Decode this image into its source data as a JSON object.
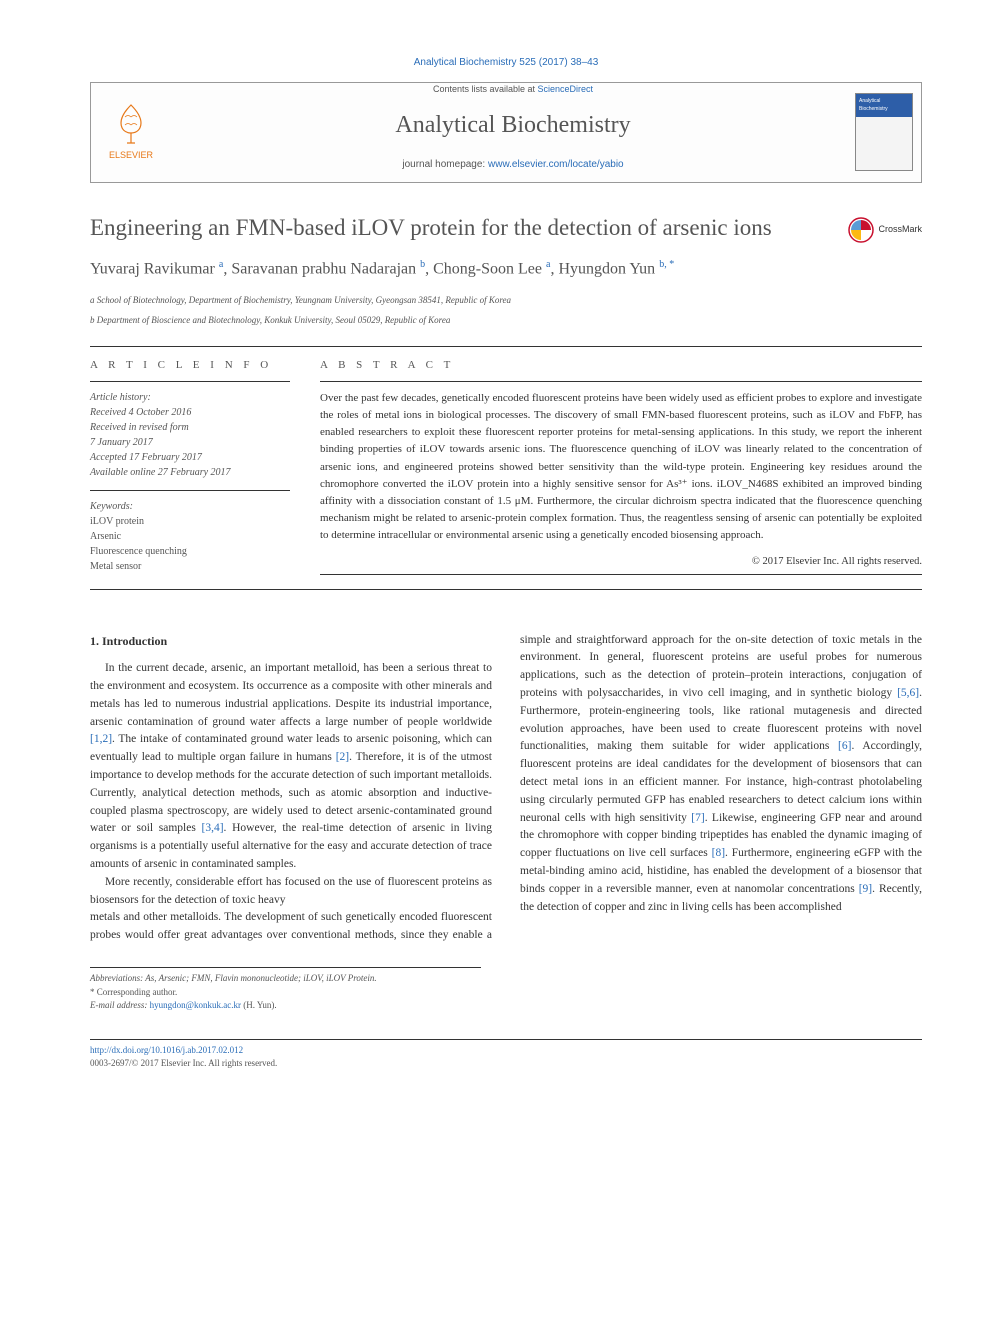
{
  "citation": "Analytical Biochemistry 525 (2017) 38–43",
  "header": {
    "contents_prefix": "Contents lists available at ",
    "contents_link": "ScienceDirect",
    "journal": "Analytical Biochemistry",
    "homepage_prefix": "journal homepage: ",
    "homepage_url": "www.elsevier.com/locate/yabio",
    "publisher": "ELSEVIER",
    "cover_label": "Analytical Biochemistry"
  },
  "title": "Engineering an FMN-based iLOV protein for the detection of arsenic ions",
  "crossmark": "CrossMark",
  "authors_html": "Yuvaraj Ravikumar <sup>a</sup>, Saravanan prabhu Nadarajan <sup>b</sup>, Chong-Soon Lee <sup>a</sup>, Hyungdon Yun <sup>b, <span class='corr'>*</span></sup>",
  "affiliations": {
    "a": "a School of Biotechnology, Department of Biochemistry, Yeungnam University, Gyeongsan 38541, Republic of Korea",
    "b": "b Department of Bioscience and Biotechnology, Konkuk University, Seoul 05029, Republic of Korea"
  },
  "article_info": {
    "heading": "A R T I C L E  I N F O",
    "history_label": "Article history:",
    "received": "Received 4 October 2016",
    "revised1": "Received in revised form",
    "revised2": "7 January 2017",
    "accepted": "Accepted 17 February 2017",
    "online": "Available online 27 February 2017",
    "keywords_label": "Keywords:",
    "keywords": [
      "iLOV protein",
      "Arsenic",
      "Fluorescence quenching",
      "Metal sensor"
    ]
  },
  "abstract": {
    "heading": "A B S T R A C T",
    "text": "Over the past few decades, genetically encoded fluorescent proteins have been widely used as efficient probes to explore and investigate the roles of metal ions in biological processes. The discovery of small FMN-based fluorescent proteins, such as iLOV and FbFP, has enabled researchers to exploit these fluorescent reporter proteins for metal-sensing applications. In this study, we report the inherent binding properties of iLOV towards arsenic ions. The fluorescence quenching of iLOV was linearly related to the concentration of arsenic ions, and engineered proteins showed better sensitivity than the wild-type protein. Engineering key residues around the chromophore converted the iLOV protein into a highly sensitive sensor for As³⁺ ions. iLOV_N468S exhibited an improved binding affinity with a dissociation constant of 1.5 μM. Furthermore, the circular dichroism spectra indicated that the fluorescence quenching mechanism might be related to arsenic-protein complex formation. Thus, the reagentless sensing of arsenic can potentially be exploited to determine intracellular or environmental arsenic using a genetically encoded biosensing approach.",
    "copyright": "© 2017 Elsevier Inc. All rights reserved."
  },
  "intro": {
    "heading": "1. Introduction",
    "p1": "In the current decade, arsenic, an important metalloid, has been a serious threat to the environment and ecosystem. Its occurrence as a composite with other minerals and metals has led to numerous industrial applications. Despite its industrial importance, arsenic contamination of ground water affects a large number of people worldwide [1,2]. The intake of contaminated ground water leads to arsenic poisoning, which can eventually lead to multiple organ failure in humans [2]. Therefore, it is of the utmost importance to develop methods for the accurate detection of such important metalloids. Currently, analytical detection methods, such as atomic absorption and inductive-coupled plasma spectroscopy, are widely used to detect arsenic-contaminated ground water or soil samples [3,4]. However, the real-time detection of arsenic in living organisms is a potentially useful alternative for the easy and accurate detection of trace amounts of arsenic in contaminated samples.",
    "p2": "More recently, considerable effort has focused on the use of fluorescent proteins as biosensors for the detection of toxic heavy",
    "p3": "metals and other metalloids. The development of such genetically encoded fluorescent probes would offer great advantages over conventional methods, since they enable a simple and straightforward approach for the on-site detection of toxic metals in the environment. In general, fluorescent proteins are useful probes for numerous applications, such as the detection of protein–protein interactions, conjugation of proteins with polysaccharides, in vivo cell imaging, and in synthetic biology [5,6]. Furthermore, protein-engineering tools, like rational mutagenesis and directed evolution approaches, have been used to create fluorescent proteins with novel functionalities, making them suitable for wider applications [6]. Accordingly, fluorescent proteins are ideal candidates for the development of biosensors that can detect metal ions in an efficient manner. For instance, high-contrast photolabeling using circularly permuted GFP has enabled researchers to detect calcium ions within neuronal cells with high sensitivity [7]. Likewise, engineering GFP near and around the chromophore with copper binding tripeptides has enabled the dynamic imaging of copper fluctuations on live cell surfaces [8]. Furthermore, engineering eGFP with the metal-binding amino acid, histidine, has enabled the development of a biosensor that binds copper in a reversible manner, even at nanomolar concentrations [9]. Recently, the detection of copper and zinc in living cells has been accomplished"
  },
  "footnotes": {
    "abbr": "Abbreviations: As, Arsenic; FMN, Flavin mononucleotide; iLOV, iLOV Protein.",
    "corr": "* Corresponding author.",
    "email_label": "E-mail address: ",
    "email": "hyungdon@konkuk.ac.kr",
    "email_suffix": " (H. Yun)."
  },
  "footer": {
    "doi": "http://dx.doi.org/10.1016/j.ab.2017.02.012",
    "issn": "0003-2697/© 2017 Elsevier Inc. All rights reserved."
  },
  "colors": {
    "link": "#2a6db8",
    "elsevier_orange": "#e77818",
    "text": "#333333",
    "muted": "#555555",
    "rule": "#333333"
  }
}
